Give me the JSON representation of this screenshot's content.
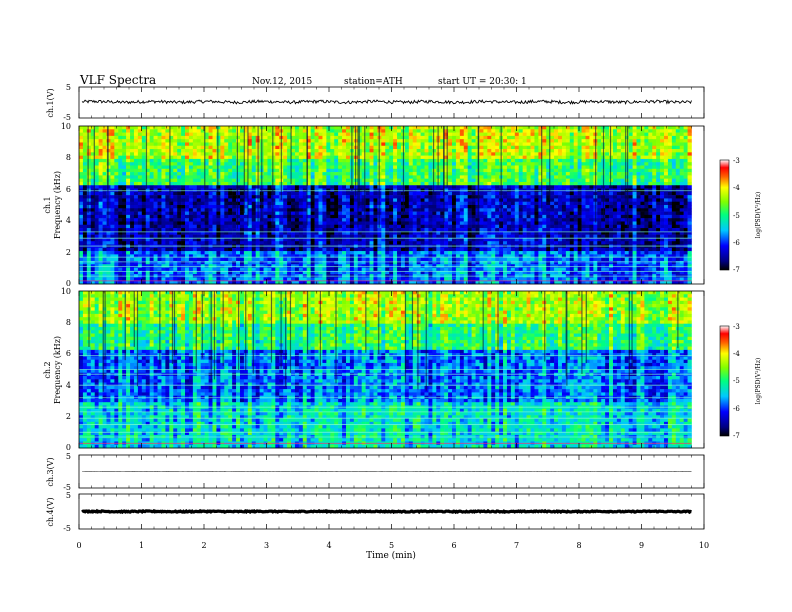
{
  "header": {
    "title": "VLF Spectra",
    "date": "Nov.12, 2015",
    "station": "station=ATH",
    "start": "start UT = 20:30: 1"
  },
  "chart_data": [
    {
      "type": "line",
      "id": "ch1_waveform",
      "ylabel": "ch.1(V)",
      "ylim": [
        -5,
        5
      ],
      "y_ticks": [
        "5",
        "-5"
      ],
      "xlim": [
        0,
        10
      ],
      "level": 0.2,
      "x_end": 9.8,
      "noise_amplitude": 0.5
    },
    {
      "type": "heatmap",
      "id": "ch1_spectrogram",
      "panel_label": "ch.1",
      "ylabel": "Frequency (kHz)",
      "ylim": [
        0,
        10
      ],
      "y_ticks": [
        "0",
        "2",
        "4",
        "6",
        "8",
        "10"
      ],
      "xlim": [
        0,
        10
      ],
      "x_end": 9.8,
      "colorbar": {
        "label": "log(PSD(V²/Hz)",
        "range": [
          -7,
          -3
        ],
        "ticks": [
          "-3",
          "-4",
          "-5",
          "-6",
          "-7"
        ]
      },
      "bands_description": "high power above 6 kHz, low power 2-6 kHz, narrowband lines below 2 kHz"
    },
    {
      "type": "heatmap",
      "id": "ch2_spectrogram",
      "panel_label": "ch.2",
      "ylabel": "Frequency (kHz)",
      "ylim": [
        0,
        10
      ],
      "y_ticks": [
        "0",
        "2",
        "4",
        "6",
        "8",
        "10"
      ],
      "xlim": [
        0,
        10
      ],
      "x_end": 9.8,
      "colorbar": {
        "label": "log(PSD(V²/Hz)",
        "range": [
          -7,
          -3
        ],
        "ticks": [
          "-3",
          "-4",
          "-5",
          "-6",
          "-7"
        ]
      }
    },
    {
      "type": "line",
      "id": "ch3_waveform",
      "ylabel": "ch.3(V)",
      "ylim": [
        -5,
        5
      ],
      "y_ticks": [
        "5",
        "-5"
      ],
      "xlim": [
        0,
        10
      ],
      "level": 0.0,
      "x_end": 9.8,
      "noise_amplitude": 0.05
    },
    {
      "type": "line",
      "id": "ch4_waveform",
      "ylabel": "ch.4(V)",
      "ylim": [
        -5,
        5
      ],
      "y_ticks": [
        "5",
        "-5"
      ],
      "xlim": [
        0,
        10
      ],
      "level": 0.0,
      "x_end": 9.8,
      "noise_amplitude": 0.15
    }
  ],
  "x_axis": {
    "label": "Time (min)",
    "ticks": [
      "0",
      "1",
      "2",
      "3",
      "4",
      "5",
      "6",
      "7",
      "8",
      "9",
      "10"
    ]
  }
}
